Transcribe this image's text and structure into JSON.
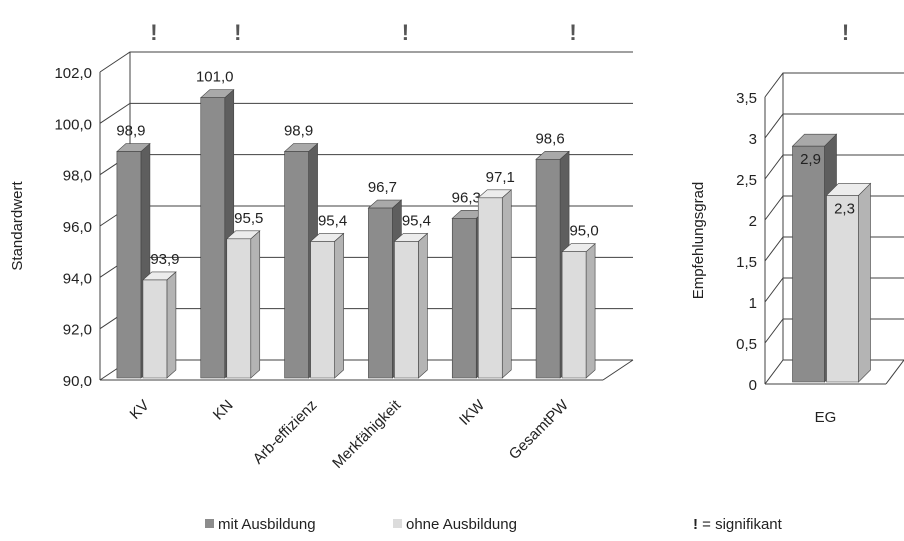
{
  "chart_data": [
    {
      "type": "bar",
      "categories": [
        "KV",
        "KN",
        "Arb-effizienz",
        "Merkfähigkeit",
        "IKW",
        "GesamtPW"
      ],
      "series": [
        {
          "name": "mit Ausbildung",
          "values": [
            98.9,
            101.0,
            98.9,
            96.7,
            96.3,
            98.6
          ],
          "labels": [
            "98,9",
            "101,0",
            "98,9",
            "96,7",
            "96,3",
            "98,6"
          ]
        },
        {
          "name": "ohne Ausbildung",
          "values": [
            93.9,
            95.5,
            95.4,
            95.4,
            97.1,
            95.0
          ],
          "labels": [
            "93,9",
            "95,5",
            "95,4",
            "95,4",
            "97,1",
            "95,0"
          ]
        }
      ],
      "ylabel": "Standardwert",
      "ylim": [
        90,
        102
      ],
      "yticks": [
        "90,0",
        "92,0",
        "94,0",
        "96,0",
        "98,0",
        "100,0",
        "102,0"
      ],
      "significant": [
        true,
        true,
        false,
        true,
        false,
        true
      ],
      "grid": true,
      "three_d": true
    },
    {
      "type": "bar",
      "categories": [
        "EG"
      ],
      "series": [
        {
          "name": "mit Ausbildung",
          "values": [
            2.9
          ],
          "labels": [
            "2,9"
          ]
        },
        {
          "name": "ohne Ausbildung",
          "values": [
            2.3
          ],
          "labels": [
            "2,3"
          ]
        }
      ],
      "ylabel": "Empfehlungsgrad",
      "ylim": [
        0,
        3.5
      ],
      "yticks": [
        "0",
        "0,5",
        "1",
        "1,5",
        "2",
        "2,5",
        "3",
        "3,5"
      ],
      "significant": [
        true
      ],
      "grid": true,
      "three_d": true
    }
  ],
  "significance_mark": "!",
  "legend": {
    "mit": "mit Ausbildung",
    "ohne": "ohne Ausbildung",
    "sig_mark": "!",
    "sig_text": " = signifikant"
  },
  "colors": {
    "mit_front": "#8c8c8c",
    "mit_side": "#5e5e5e",
    "mit_top": "#a9a9a9",
    "ohne_front": "#dcdcdc",
    "ohne_side": "#b4b4b4",
    "ohne_top": "#ececec",
    "grid": "#404040",
    "text": "#222222"
  }
}
